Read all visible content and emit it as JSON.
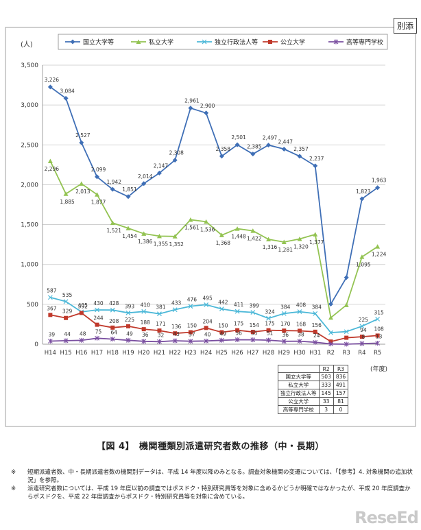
{
  "corner_label": "別添",
  "chart_data": {
    "type": "line",
    "title": "",
    "ylabel": "(人)",
    "xlabel": "(年度)",
    "ylim": [
      0,
      3500
    ],
    "yticks": [
      "0",
      "500",
      "1,000",
      "1,500",
      "2,000",
      "2,500",
      "3,000",
      "3,500"
    ],
    "ytick_values": [
      0,
      500,
      1000,
      1500,
      2000,
      2500,
      3000,
      3500
    ],
    "grid": "horizontal",
    "legend_position": "top",
    "categories": [
      "H14",
      "H15",
      "H16",
      "H17",
      "H18",
      "H19",
      "H20",
      "H21",
      "H22",
      "H23",
      "H24",
      "H25",
      "H26",
      "H27",
      "H28",
      "H29",
      "H30",
      "H31",
      "R2",
      "R3",
      "R4",
      "R5"
    ],
    "series": [
      {
        "name": "国立大学等",
        "color": "#3f6fb6",
        "marker": "diamond",
        "values": [
          3226,
          3084,
          2527,
          2099,
          1942,
          1851,
          2014,
          2147,
          2308,
          2961,
          2900,
          2358,
          2501,
          2385,
          2497,
          2447,
          2357,
          2237,
          503,
          836,
          1823,
          1963
        ],
        "labels": [
          "3,226",
          "3,084",
          "2,527",
          "2,099",
          "1,942",
          "1,851",
          "2,014",
          "2,147",
          "2,308",
          "2,961",
          "2,900",
          "2,358",
          "2,501",
          "2,385",
          "2,497",
          "2,447",
          "2,357",
          "2,237",
          "",
          "",
          "1,823",
          "1,963"
        ]
      },
      {
        "name": "私立大学",
        "color": "#93c352",
        "marker": "triangle",
        "values": [
          2296,
          1885,
          2013,
          1877,
          1521,
          1454,
          1386,
          1355,
          1352,
          1561,
          1536,
          1368,
          1448,
          1422,
          1316,
          1281,
          1320,
          1377,
          333,
          491,
          1095,
          1224
        ],
        "labels": [
          "2,296",
          "1,885",
          "2,013",
          "1,877",
          "1,521",
          "1,454",
          "1,386",
          "1,355",
          "1,352",
          "1,561",
          "1,536",
          "1,368",
          "1,448",
          "1,422",
          "1,316",
          "1,281",
          "1,320",
          "1,377",
          "",
          "",
          "1,095",
          "1,224"
        ]
      },
      {
        "name": "独立行政法人等",
        "color": "#4cb8d8",
        "marker": "x",
        "values": [
          587,
          535,
          405,
          430,
          428,
          393,
          410,
          381,
          433,
          476,
          495,
          442,
          411,
          399,
          324,
          384,
          408,
          384,
          145,
          157,
          225,
          315
        ],
        "labels": [
          "587",
          "535",
          "405",
          "430",
          "428",
          "393",
          "410",
          "381",
          "433",
          "476",
          "495",
          "442",
          "411",
          "399",
          "324",
          "384",
          "408",
          "384",
          "",
          "",
          "225",
          "315"
        ]
      },
      {
        "name": "公立大学",
        "color": "#c0392b",
        "marker": "square",
        "values": [
          367,
          329,
          392,
          244,
          208,
          225,
          188,
          171,
          136,
          150,
          204,
          150,
          175,
          154,
          175,
          170,
          168,
          156,
          33,
          81,
          94,
          108
        ],
        "labels": [
          "367",
          "329",
          "392",
          "244",
          "208",
          "225",
          "188",
          "171",
          "136",
          "150",
          "204",
          "150",
          "175",
          "154",
          "175",
          "170",
          "168",
          "156",
          "",
          "",
          "94",
          "108"
        ]
      },
      {
        "name": "高等専門学校",
        "color": "#7a4fa0",
        "marker": "cross",
        "values": [
          39,
          44,
          48,
          75,
          64,
          49,
          36,
          32,
          43,
          37,
          40,
          49,
          56,
          55,
          51,
          36,
          38,
          24,
          3,
          0,
          8,
          13
        ],
        "labels": [
          "39",
          "44",
          "48",
          "75",
          "64",
          "49",
          "36",
          "32",
          "43",
          "37",
          "40",
          "49",
          "56",
          "55",
          "51",
          "36",
          "38",
          "24",
          "",
          "",
          "8",
          "13"
        ]
      }
    ]
  },
  "inset_table": {
    "headers": [
      "",
      "R2",
      "R3"
    ],
    "rows": [
      {
        "label": "国立大学等",
        "r2": "503",
        "r3": "836"
      },
      {
        "label": "私立大学",
        "r2": "333",
        "r3": "491"
      },
      {
        "label": "独立行政法人等",
        "r2": "145",
        "r3": "157"
      },
      {
        "label": "公立大学",
        "r2": "33",
        "r3": "81"
      },
      {
        "label": "高等専門学校",
        "r2": "3",
        "r3": "0"
      }
    ]
  },
  "caption": "【図 4】　機関種類別派遣研究者数の推移（中・長期）",
  "notes": [
    {
      "mark": "※",
      "text": "短期派遣者数、中・長期派遣者数の機関別データは、平成 14 年度以降のみとなる。調査対象機関の変遷については、「【参考】4. 対象機関の追加状況」を参照。"
    },
    {
      "mark": "※",
      "text": "派遣研究者数については、平成 19 年度以前の調査ではポスドク・特別研究員等を対象に含めるかどうか明確ではなかったが、平成 20 年度調査からポスドクを、平成 22 年度調査からポスドク・特別研究員等を対象に含めている。"
    }
  ],
  "watermark": "ReseEd"
}
